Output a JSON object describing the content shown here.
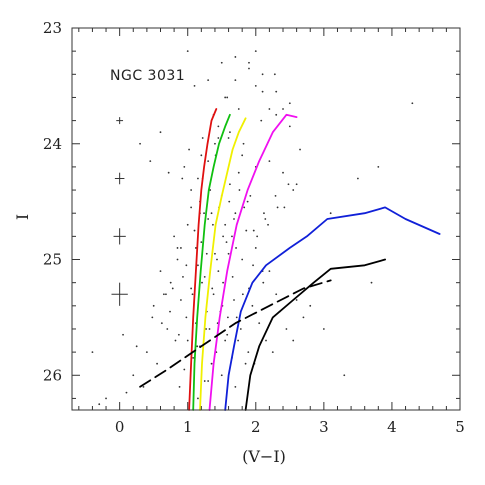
{
  "chart_data": {
    "type": "scatter",
    "title": "",
    "annotation": "NGC 3031",
    "xlabel": "(V−I)",
    "ylabel": "I",
    "xlim": [
      -0.7,
      5.0
    ],
    "ylim": [
      26.3,
      23.0
    ],
    "y_inverted": true,
    "xticks": [
      0,
      1,
      2,
      3,
      4,
      5
    ],
    "yticks": [
      23,
      24,
      25,
      26
    ],
    "xtick_labels": [
      "0",
      "1",
      "2",
      "3",
      "4",
      "5"
    ],
    "ytick_labels": [
      "23",
      "24",
      "25",
      "26"
    ],
    "grid": false,
    "colors": {
      "red": "#e01010",
      "green": "#10c010",
      "yellow": "#f0f000",
      "magenta": "#f010f0",
      "blue": "#1020d8",
      "black": "#000000",
      "points": "#333333"
    },
    "error_bars": [
      {
        "x": 0.0,
        "y": 23.8,
        "xerr": 0.05,
        "yerr": 0.03
      },
      {
        "x": 0.0,
        "y": 24.3,
        "xerr": 0.07,
        "yerr": 0.05
      },
      {
        "x": 0.0,
        "y": 24.8,
        "xerr": 0.09,
        "yerr": 0.07
      },
      {
        "x": 0.0,
        "y": 25.3,
        "xerr": 0.12,
        "yerr": 0.1
      }
    ],
    "series": [
      {
        "color": "red",
        "style": "solid",
        "x": [
          1.02,
          1.05,
          1.08,
          1.12,
          1.16,
          1.2,
          1.24,
          1.29,
          1.35,
          1.42
        ],
        "y": [
          26.3,
          25.9,
          25.5,
          25.1,
          24.7,
          24.4,
          24.2,
          24.0,
          23.8,
          23.7
        ]
      },
      {
        "color": "green",
        "style": "solid",
        "x": [
          1.08,
          1.1,
          1.14,
          1.19,
          1.25,
          1.31,
          1.38,
          1.46,
          1.55,
          1.62
        ],
        "y": [
          26.3,
          25.9,
          25.5,
          25.1,
          24.7,
          24.4,
          24.2,
          24.0,
          23.85,
          23.75
        ]
      },
      {
        "color": "yellow",
        "style": "solid",
        "x": [
          1.18,
          1.21,
          1.26,
          1.33,
          1.41,
          1.5,
          1.58,
          1.66,
          1.75,
          1.85
        ],
        "y": [
          26.3,
          25.9,
          25.5,
          25.1,
          24.7,
          24.45,
          24.25,
          24.05,
          23.9,
          23.78
        ]
      },
      {
        "color": "magenta",
        "style": "solid",
        "x": [
          1.32,
          1.38,
          1.47,
          1.58,
          1.72,
          1.88,
          2.05,
          2.25,
          2.45,
          2.6
        ],
        "y": [
          26.3,
          25.9,
          25.5,
          25.1,
          24.7,
          24.4,
          24.15,
          23.9,
          23.75,
          23.77
        ]
      },
      {
        "color": "blue",
        "style": "solid",
        "x": [
          1.55,
          1.6,
          1.68,
          1.78,
          1.95,
          2.15,
          2.5,
          2.75,
          3.05,
          3.6,
          3.9,
          4.2,
          4.7
        ],
        "y": [
          26.3,
          26.0,
          25.75,
          25.45,
          25.2,
          25.05,
          24.9,
          24.8,
          24.65,
          24.6,
          24.55,
          24.65,
          24.78
        ]
      },
      {
        "color": "black",
        "style": "solid",
        "x": [
          1.85,
          1.92,
          2.05,
          2.25,
          2.55,
          2.85,
          3.1,
          3.6,
          3.9
        ],
        "y": [
          26.3,
          26.0,
          25.75,
          25.5,
          25.35,
          25.2,
          25.08,
          25.05,
          25.0
        ]
      },
      {
        "color": "black",
        "style": "dashed",
        "x": [
          0.3,
          0.7,
          1.2,
          1.7,
          2.2,
          2.7,
          3.1
        ],
        "y": [
          26.1,
          25.95,
          25.75,
          25.55,
          25.4,
          25.25,
          25.18
        ]
      }
    ],
    "points": {
      "x": [
        0.95,
        1.05,
        1.18,
        1.22,
        1.35,
        1.41,
        1.5,
        1.62,
        1.75,
        1.88,
        0.8,
        0.9,
        1.0,
        1.1,
        1.2,
        1.3,
        1.4,
        1.55,
        1.65,
        1.7,
        0.6,
        0.75,
        0.85,
        1.15,
        1.25,
        1.45,
        1.6,
        1.8,
        2.0,
        2.1,
        0.5,
        0.65,
        0.9,
        1.05,
        1.28,
        1.38,
        1.52,
        1.68,
        1.9,
        2.2,
        0.7,
        0.82,
        0.98,
        1.12,
        1.32,
        1.48,
        1.58,
        1.72,
        1.95,
        2.3,
        0.4,
        0.55,
        1.08,
        1.18,
        1.42,
        1.55,
        1.78,
        2.05,
        2.35,
        2.6,
        0.2,
        0.35,
        0.95,
        1.25,
        1.35,
        1.65,
        1.85,
        2.15,
        2.45,
        2.7,
        -0.2,
        0.1,
        0.88,
        1.15,
        1.3,
        1.5,
        1.7,
        1.98,
        2.25,
        2.55,
        0.3,
        0.6,
        1.02,
        1.22,
        1.45,
        1.62,
        1.82,
        2.08,
        2.4,
        3.1,
        0.45,
        0.72,
        0.92,
        1.38,
        1.58,
        1.75,
        2.0,
        2.28,
        2.5,
        3.5,
        1.1,
        1.3,
        1.5,
        1.7,
        1.9,
        2.1,
        2.3,
        2.5,
        2.65,
        3.8,
        1.2,
        1.4,
        1.6,
        1.8,
        2.0,
        2.2,
        2.4,
        2.6,
        1.0,
        4.3,
        -0.4,
        -0.3,
        0.05,
        0.25,
        0.48,
        0.68,
        2.8,
        3.3,
        3.0,
        3.7,
        1.05,
        1.18,
        1.33,
        1.46,
        1.61,
        1.76,
        1.92,
        2.12,
        2.32,
        2.48,
        0.85,
        0.98,
        1.12,
        1.28,
        1.43,
        1.57,
        1.71,
        1.86,
        2.02,
        2.18,
        0.78,
        0.93,
        1.07,
        1.21,
        1.36,
        1.51,
        1.66,
        1.81,
        1.96,
        2.11,
        1.15,
        1.24,
        1.37,
        1.52,
        1.68,
        1.83,
        1.97,
        2.14,
        2.29,
        2.42,
        0.62,
        0.74,
        0.87,
        1.0,
        1.14,
        1.27,
        1.44,
        1.59,
        1.74,
        1.89,
        1.9,
        2.0,
        2.1,
        1.55,
        1.7,
        2.3,
        2.2,
        1.45,
        1.3,
        2.55
      ],
      "y": [
        24.2,
        24.4,
        24.5,
        24.3,
        24.6,
        24.1,
        24.45,
        24.35,
        24.25,
        24.5,
        24.8,
        24.9,
        24.7,
        24.75,
        24.85,
        24.65,
        24.95,
        24.7,
        24.8,
        24.6,
        25.1,
        25.2,
        25.0,
        25.05,
        25.15,
        25.1,
        24.95,
        25.0,
        24.9,
        25.1,
        25.4,
        25.3,
        25.35,
        25.25,
        25.45,
        25.3,
        25.2,
        25.35,
        25.25,
        25.1,
        25.6,
        25.7,
        25.5,
        25.55,
        25.6,
        25.45,
        25.65,
        25.5,
        25.4,
        25.3,
        25.8,
        25.9,
        25.85,
        25.75,
        25.8,
        25.7,
        25.6,
        25.55,
        25.45,
        25.35,
        26.0,
        26.1,
        25.95,
        26.05,
        25.9,
        25.85,
        25.9,
        25.7,
        25.6,
        25.5,
        26.2,
        26.15,
        26.1,
        26.2,
        26.05,
        26.0,
        26.1,
        25.9,
        25.8,
        25.7,
        24.0,
        23.9,
        24.05,
        23.95,
        23.85,
        23.9,
        24.0,
        23.8,
        23.7,
        24.6,
        24.15,
        24.25,
        24.3,
        23.75,
        23.6,
        23.7,
        23.5,
        23.4,
        23.65,
        24.3,
        23.5,
        23.45,
        23.3,
        23.25,
        23.35,
        23.55,
        23.75,
        23.85,
        24.05,
        24.2,
        24.1,
        24.0,
        23.95,
        24.1,
        24.2,
        24.15,
        24.25,
        24.35,
        23.2,
        23.65,
        25.8,
        26.25,
        25.65,
        25.75,
        25.5,
        25.3,
        25.4,
        26.0,
        25.6,
        25.2,
        24.55,
        24.6,
        24.4,
        24.55,
        24.5,
        24.4,
        24.45,
        24.6,
        24.55,
        24.35,
        24.9,
        25.05,
        24.9,
        24.95,
        25.0,
        24.85,
        24.9,
        24.75,
        24.8,
        24.7,
        25.25,
        25.15,
        25.3,
        25.2,
        25.25,
        25.4,
        25.15,
        25.3,
        25.05,
        25.2,
        24.3,
        24.6,
        24.7,
        24.8,
        24.65,
        24.55,
        24.75,
        24.65,
        24.45,
        24.55,
        25.55,
        25.45,
        25.65,
        25.7,
        25.75,
        25.6,
        25.55,
        25.5,
        25.7,
        25.8,
        23.3,
        23.2,
        23.4,
        23.6,
        23.45,
        23.55,
        23.7,
        23.95,
        24.15,
        24.4
      ]
    }
  }
}
